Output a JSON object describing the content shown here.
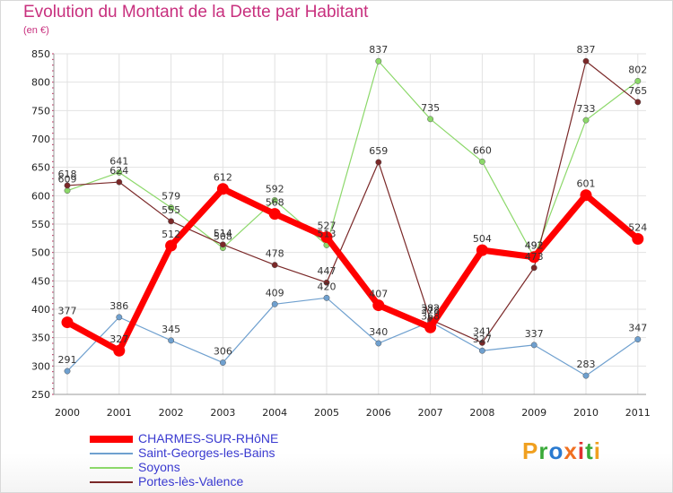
{
  "title": "Evolution du Montant de la Dette par Habitant",
  "subtitle": "(en €)",
  "logo": {
    "text": "Proxiti",
    "letters": [
      "P",
      "r",
      "o",
      "x",
      "i",
      "t",
      "i"
    ],
    "colors": [
      "#f0a020",
      "#3aaa3a",
      "#2a7ad0",
      "#f07020",
      "#e03030",
      "#3aaa3a",
      "#f0a020"
    ]
  },
  "chart_data": {
    "type": "line",
    "title": "Evolution du Montant de la Dette par Habitant",
    "subtitle": "(en €)",
    "xlabel": "",
    "ylabel": "",
    "x": [
      "2000",
      "2001",
      "2002",
      "2003",
      "2004",
      "2005",
      "2006",
      "2007",
      "2008",
      "2009",
      "2010",
      "2011"
    ],
    "ylim": [
      250,
      850
    ],
    "yticks": [
      250,
      300,
      350,
      400,
      450,
      500,
      550,
      600,
      650,
      700,
      750,
      800,
      850
    ],
    "grid": true,
    "legend_position": "bottom-left",
    "series": [
      {
        "name": "CHARMES-SUR-RHôNE",
        "color": "#ff0000",
        "values": [
          377,
          327,
          512,
          612,
          568,
          527,
          407,
          368,
          504,
          492,
          601,
          524
        ]
      },
      {
        "name": "Saint-Georges-les-Bains",
        "color": "#6fa0cf",
        "values": [
          291,
          386,
          345,
          306,
          409,
          420,
          340,
          378,
          327,
          337,
          283,
          347
        ]
      },
      {
        "name": "Soyons",
        "color": "#8cd86a",
        "values": [
          609,
          641,
          579,
          508,
          592,
          513,
          837,
          735,
          660,
          492,
          733,
          802
        ]
      },
      {
        "name": "Portes-lès-Valence",
        "color": "#7a2828",
        "values": [
          618,
          624,
          555,
          514,
          478,
          447,
          659,
          382,
          341,
          473,
          837,
          765
        ]
      }
    ]
  }
}
